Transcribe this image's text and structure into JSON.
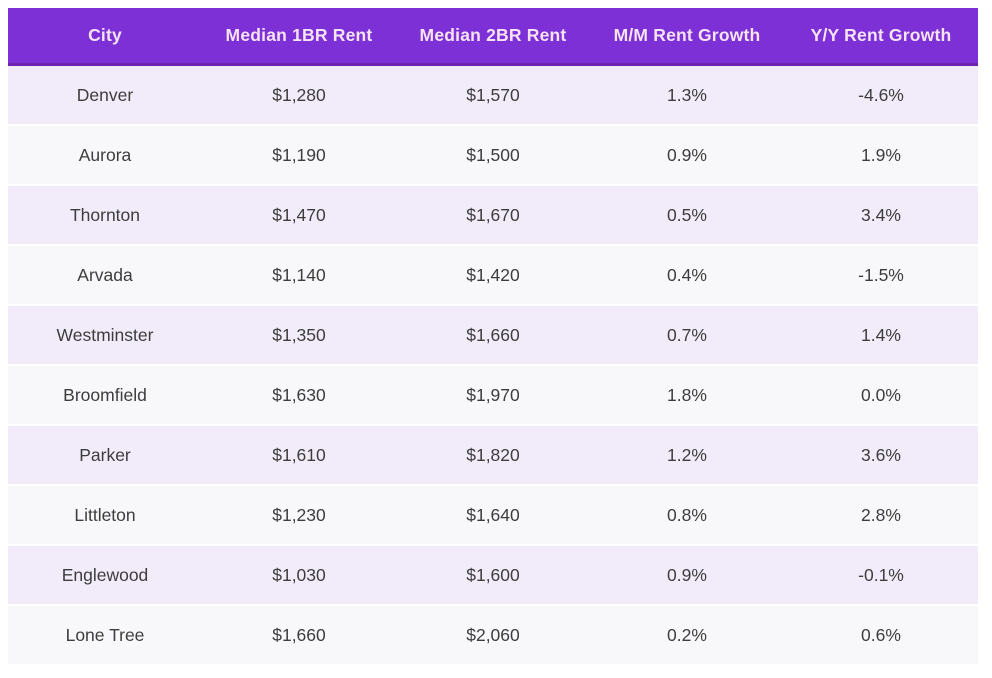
{
  "chart_data": {
    "type": "table",
    "title": "",
    "columns": [
      "City",
      "Median 1BR Rent",
      "Median 2BR Rent",
      "M/M Rent Growth",
      "Y/Y Rent Growth"
    ],
    "rows": [
      [
        "Denver",
        "$1,280",
        "$1,570",
        "1.3%",
        "-4.6%"
      ],
      [
        "Aurora",
        "$1,190",
        "$1,500",
        "0.9%",
        "1.9%"
      ],
      [
        "Thornton",
        "$1,470",
        "$1,670",
        "0.5%",
        "3.4%"
      ],
      [
        "Arvada",
        "$1,140",
        "$1,420",
        "0.4%",
        "-1.5%"
      ],
      [
        "Westminster",
        "$1,350",
        "$1,660",
        "0.7%",
        "1.4%"
      ],
      [
        "Broomfield",
        "$1,630",
        "$1,970",
        "1.8%",
        "0.0%"
      ],
      [
        "Parker",
        "$1,610",
        "$1,820",
        "1.2%",
        "3.6%"
      ],
      [
        "Littleton",
        "$1,230",
        "$1,640",
        "0.8%",
        "2.8%"
      ],
      [
        "Englewood",
        "$1,030",
        "$1,600",
        "0.9%",
        "-0.1%"
      ],
      [
        "Lone Tree",
        "$1,660",
        "$2,060",
        "0.2%",
        "0.6%"
      ]
    ],
    "column_keys": [
      "city",
      "median-1br-rent",
      "median-2br-rent",
      "mm-rent-growth",
      "yy-rent-growth"
    ],
    "layout": {
      "grid": "off",
      "row_striping": "alternating",
      "text_align": "center"
    },
    "colors": {
      "header_bg": "#7c30d5",
      "header_text": "#f6e3f4",
      "header_border": "#6b22ae",
      "row_odd_bg": "#f2ebf9",
      "row_even_bg": "#f8f7f9",
      "body_text": "#3d3d3d",
      "page_bg": "#ffffff"
    }
  }
}
